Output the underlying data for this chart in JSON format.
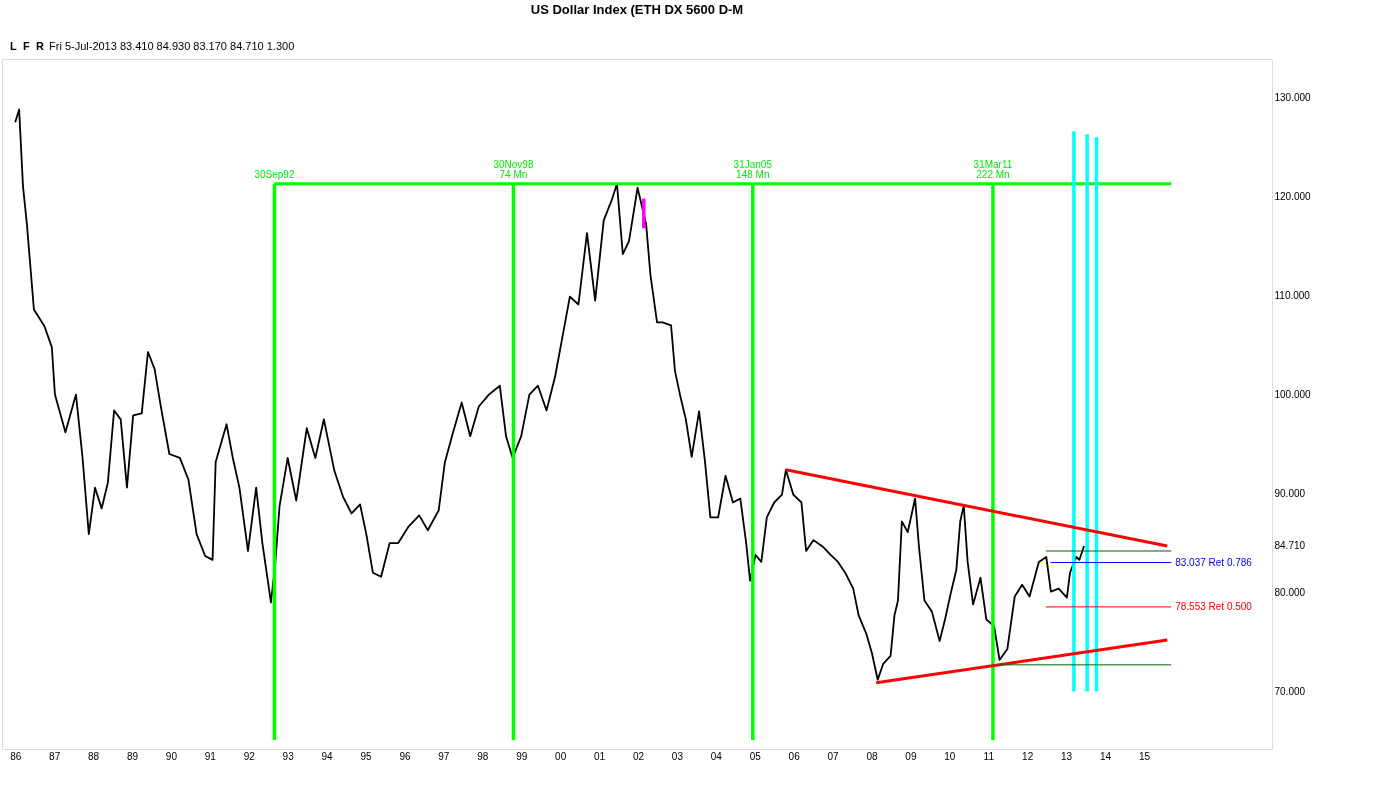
{
  "chart_data": {
    "type": "line",
    "title": "US Dollar Index (ETH DX 5600 D-M",
    "xlim": [
      1985.66,
      2018.29
    ],
    "ylim": [
      64.2,
      133.9
    ],
    "xticks": [
      {
        "value": 1986,
        "label": "86"
      },
      {
        "value": 1987,
        "label": "87"
      },
      {
        "value": 1988,
        "label": "88"
      },
      {
        "value": 1989,
        "label": "89"
      },
      {
        "value": 1990,
        "label": "90"
      },
      {
        "value": 1991,
        "label": "91"
      },
      {
        "value": 1992,
        "label": "92"
      },
      {
        "value": 1993,
        "label": "93"
      },
      {
        "value": 1994,
        "label": "94"
      },
      {
        "value": 1995,
        "label": "95"
      },
      {
        "value": 1996,
        "label": "96"
      },
      {
        "value": 1997,
        "label": "97"
      },
      {
        "value": 1998,
        "label": "98"
      },
      {
        "value": 1999,
        "label": "99"
      },
      {
        "value": 2000,
        "label": "00"
      },
      {
        "value": 2001,
        "label": "01"
      },
      {
        "value": 2002,
        "label": "02"
      },
      {
        "value": 2003,
        "label": "03"
      },
      {
        "value": 2004,
        "label": "04"
      },
      {
        "value": 2005,
        "label": "05"
      },
      {
        "value": 2006,
        "label": "06"
      },
      {
        "value": 2007,
        "label": "07"
      },
      {
        "value": 2008,
        "label": "08"
      },
      {
        "value": 2009,
        "label": "09"
      },
      {
        "value": 2010,
        "label": "10"
      },
      {
        "value": 2011,
        "label": "11"
      },
      {
        "value": 2012,
        "label": "12"
      },
      {
        "value": 2013,
        "label": "13"
      },
      {
        "value": 2014,
        "label": "14"
      },
      {
        "value": 2015,
        "label": "15"
      }
    ],
    "yticks": [
      {
        "value": 70,
        "label": "70.000"
      },
      {
        "value": 80,
        "label": "80.000"
      },
      {
        "value": 90,
        "label": "90.000"
      },
      {
        "value": 100,
        "label": "100.000"
      },
      {
        "value": 110,
        "label": "110.000"
      },
      {
        "value": 120,
        "label": "120.000"
      },
      {
        "value": 130,
        "label": "130.000"
      },
      {
        "value": 84.71,
        "label": "84.710"
      }
    ],
    "grid": false,
    "line_style": "solid",
    "series": [
      {
        "color": "#000000",
        "x": [
          1986.0,
          1986.1,
          1986.2,
          1986.3,
          1986.48,
          1986.75,
          1986.94,
          1987.02,
          1987.29,
          1987.56,
          1987.73,
          1987.89,
          1988.05,
          1988.22,
          1988.38,
          1988.54,
          1988.71,
          1988.87,
          1989.03,
          1989.25,
          1989.41,
          1989.58,
          1989.74,
          1989.96,
          1990.23,
          1990.45,
          1990.66,
          1990.88,
          1991.07,
          1991.15,
          1991.43,
          1991.59,
          1991.76,
          1991.98,
          1992.19,
          1992.35,
          1992.57,
          1992.68,
          1992.79,
          1993.0,
          1993.22,
          1993.49,
          1993.71,
          1993.93,
          1994.2,
          1994.42,
          1994.64,
          1994.86,
          1995.02,
          1995.19,
          1995.4,
          1995.62,
          1995.84,
          1996.11,
          1996.38,
          1996.6,
          1996.88,
          1997.04,
          1997.25,
          1997.47,
          1997.69,
          1997.91,
          1998.17,
          1998.45,
          1998.61,
          1998.78,
          1999.0,
          1999.21,
          1999.43,
          1999.65,
          1999.87,
          2000.03,
          2000.25,
          2000.47,
          2000.69,
          2000.9,
          2001.12,
          2001.34,
          2001.46,
          2001.61,
          2001.77,
          2001.99,
          2002.21,
          2002.32,
          2002.49,
          2002.63,
          2002.85,
          2002.95,
          2003.09,
          2003.23,
          2003.38,
          2003.57,
          2003.72,
          2003.86,
          2004.06,
          2004.25,
          2004.44,
          2004.63,
          2004.78,
          2004.88,
          2005.02,
          2005.17,
          2005.31,
          2005.5,
          2005.7,
          2005.8,
          2005.99,
          2006.2,
          2006.32,
          2006.51,
          2006.76,
          2006.95,
          2007.14,
          2007.34,
          2007.53,
          2007.67,
          2007.87,
          2008.01,
          2008.16,
          2008.3,
          2008.49,
          2008.59,
          2008.68,
          2008.78,
          2008.93,
          2009.12,
          2009.22,
          2009.36,
          2009.55,
          2009.75,
          2009.89,
          2010.04,
          2010.18,
          2010.28,
          2010.37,
          2010.47,
          2010.61,
          2010.8,
          2010.95,
          2011.15,
          2011.29,
          2011.49,
          2011.68,
          2011.87,
          2012.06,
          2012.3,
          2012.49,
          2012.61,
          2012.81,
          2013.02,
          2013.1,
          2013.26,
          2013.34,
          2013.46
        ],
        "values": [
          127.5,
          128.8,
          121.0,
          117.2,
          108.6,
          106.9,
          104.8,
          100.0,
          96.2,
          100.0,
          93.6,
          85.9,
          90.6,
          88.5,
          91.1,
          98.4,
          97.5,
          90.6,
          97.9,
          98.1,
          104.3,
          102.6,
          98.8,
          94.0,
          93.6,
          91.4,
          85.9,
          83.7,
          83.3,
          93.2,
          97.0,
          93.6,
          90.6,
          84.2,
          90.6,
          85.0,
          79.0,
          82.9,
          88.7,
          93.6,
          89.3,
          96.6,
          93.6,
          97.5,
          92.3,
          89.7,
          88.0,
          88.9,
          85.9,
          82.0,
          81.6,
          85.0,
          85.0,
          86.7,
          87.8,
          86.3,
          88.3,
          93.2,
          96.2,
          99.2,
          95.8,
          98.8,
          100.0,
          100.9,
          95.8,
          93.6,
          95.8,
          100.0,
          100.9,
          98.4,
          101.8,
          105.2,
          109.9,
          109.1,
          116.3,
          109.5,
          117.6,
          119.8,
          121.3,
          114.2,
          115.5,
          120.9,
          117.2,
          112.1,
          107.3,
          107.3,
          107.0,
          102.4,
          99.8,
          97.5,
          93.7,
          98.3,
          93.3,
          87.6,
          87.6,
          91.8,
          89.1,
          89.5,
          85.0,
          81.2,
          83.8,
          83.1,
          87.6,
          89.1,
          89.9,
          92.4,
          89.9,
          89.1,
          84.2,
          85.3,
          84.6,
          83.8,
          83.1,
          81.9,
          80.4,
          77.7,
          75.8,
          73.9,
          71.2,
          72.8,
          73.6,
          77.7,
          79.2,
          87.2,
          86.1,
          89.5,
          84.6,
          79.2,
          78.1,
          75.1,
          77.3,
          80.0,
          82.3,
          87.2,
          88.8,
          83.1,
          78.8,
          81.5,
          77.3,
          76.6,
          73.2,
          74.3,
          79.6,
          80.8,
          79.6,
          83.1,
          83.6,
          80.1,
          80.4,
          79.5,
          82.0,
          83.6,
          83.3,
          84.7
        ]
      },
      {
        "color": "#ff00ff",
        "x": [
          2002.15,
          2002.15
        ],
        "values": [
          119.8,
          116.8
        ]
      },
      {
        "color": "#00ff00",
        "x": [
          1992.66,
          2015.7
        ],
        "values": [
          121.3,
          121.3
        ]
      },
      {
        "color": "#00ff00",
        "x": [
          1992.66,
          1992.66
        ],
        "values": [
          65.1,
          121.3
        ]
      },
      {
        "color": "#00ff00",
        "x": [
          1998.8,
          1998.8
        ],
        "values": [
          65.1,
          121.3
        ]
      },
      {
        "color": "#00ff00",
        "x": [
          2004.95,
          2004.95
        ],
        "values": [
          65.1,
          121.3
        ]
      },
      {
        "color": "#00ff00",
        "x": [
          2011.12,
          2011.12
        ],
        "values": [
          65.1,
          121.3
        ]
      },
      {
        "color": "#00ffff",
        "x": [
          2013.2,
          2013.2
        ],
        "values": [
          70.0,
          126.6
        ]
      },
      {
        "color": "#00ffff",
        "x": [
          2013.54,
          2013.54
        ],
        "values": [
          70.0,
          126.3
        ]
      },
      {
        "color": "#00ffff",
        "x": [
          2013.78,
          2013.78
        ],
        "values": [
          70.0,
          126.0
        ]
      },
      {
        "color": "#ff0000",
        "x": [
          2005.8,
          2015.6
        ],
        "values": [
          92.4,
          84.7
        ]
      },
      {
        "color": "#ff0000",
        "x": [
          2008.12,
          2015.6
        ],
        "values": [
          70.9,
          75.2
        ]
      },
      {
        "color": "#006400",
        "x": [
          2012.48,
          2015.7
        ],
        "values": [
          84.2,
          84.2
        ]
      },
      {
        "color": "#0000ff",
        "name": "83.037 Ret 0.786",
        "x": [
          2012.6,
          2015.7
        ],
        "values": [
          83.037,
          83.037
        ]
      },
      {
        "color": "#ff0000",
        "name": "78.553 Ret 0.500",
        "x": [
          2012.48,
          2015.7
        ],
        "values": [
          78.553,
          78.553
        ]
      },
      {
        "color": "#006400",
        "x": [
          2011.25,
          2015.7
        ],
        "values": [
          72.7,
          72.7
        ]
      }
    ],
    "annotations": [
      "L",
      "F",
      "R",
      "Fri 5-Jul-2013   83.410   84.930   83.170   84.710   1.300",
      {
        "text": "30Sep92",
        "x": 1992.66,
        "y": 121.3
      },
      {
        "text": "30Nov98\n74 Mn",
        "x": 1998.8,
        "y": 121.3
      },
      {
        "text": "31Jan05\n148 Mn",
        "x": 2004.95,
        "y": 121.3
      },
      {
        "text": "31Mar11\n222 Mn",
        "x": 2011.12,
        "y": 121.3
      }
    ]
  }
}
